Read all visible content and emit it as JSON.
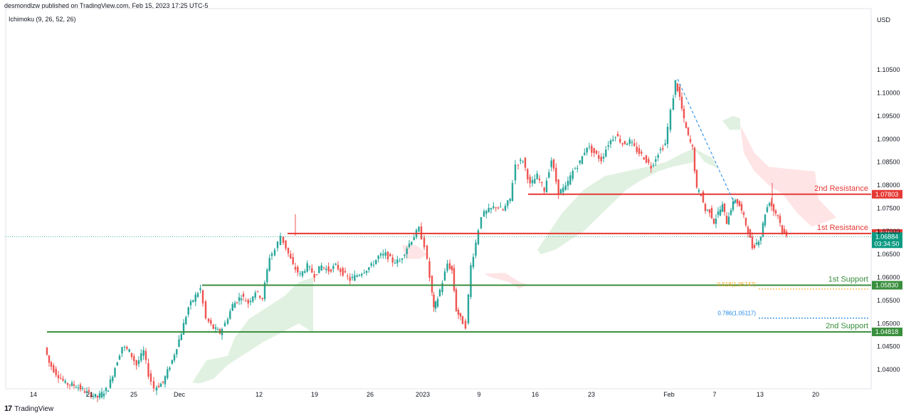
{
  "header": {
    "published": "desmondlzw published on TradingView.com, Feb 15, 2023 17:25 UTC-5"
  },
  "indicator": {
    "label": "Ichimoku (9, 26, 52, 26)"
  },
  "footer": {
    "brand": "TradingView",
    "logo": "17"
  },
  "colors": {
    "up": "#26a69a",
    "down": "#ef5350",
    "resistance": "#e53935",
    "support": "#388e3c",
    "cloud_bull": "#c8e6c9",
    "cloud_bear": "#ffcdd2",
    "fib_orange": "#f9a825",
    "fib_blue": "#1e88e5"
  },
  "chart_data": {
    "type": "candlestick",
    "title": "",
    "currency": "USD",
    "ylim": [
      1.037,
      1.112
    ],
    "y_ticks": [
      "1.10500",
      "1.10000",
      "1.09500",
      "1.09000",
      "1.08500",
      "1.08000",
      "1.07500",
      "1.07000",
      "1.06500",
      "1.06000",
      "1.05500",
      "1.05000",
      "1.04500",
      "1.04000"
    ],
    "x_ticks": [
      {
        "label": "14",
        "x": 47
      },
      {
        "label": "21",
        "x": 126
      },
      {
        "label": "25",
        "x": 188
      },
      {
        "label": "Dec",
        "x": 252
      },
      {
        "label": "12",
        "x": 364
      },
      {
        "label": "19",
        "x": 442
      },
      {
        "label": "26",
        "x": 520
      },
      {
        "label": "2023",
        "x": 594
      },
      {
        "label": "9",
        "x": 673
      },
      {
        "label": "16",
        "x": 752
      },
      {
        "label": "23",
        "x": 831
      },
      {
        "label": "Feb",
        "x": 940
      },
      {
        "label": "7",
        "x": 1004
      },
      {
        "label": "13",
        "x": 1068
      },
      {
        "label": "20",
        "x": 1146
      }
    ],
    "x_range": [
      0,
      1224
    ],
    "price_path": [
      [
        66,
        1.0448
      ],
      [
        72,
        1.0415
      ],
      [
        82,
        1.0392
      ],
      [
        95,
        1.037
      ],
      [
        110,
        1.0365
      ],
      [
        125,
        1.035
      ],
      [
        140,
        1.034
      ],
      [
        155,
        1.036
      ],
      [
        168,
        1.042
      ],
      [
        175,
        1.045
      ],
      [
        185,
        1.044
      ],
      [
        195,
        1.041
      ],
      [
        205,
        1.044
      ],
      [
        212,
        1.039
      ],
      [
        220,
        1.036
      ],
      [
        232,
        1.0372
      ],
      [
        245,
        1.042
      ],
      [
        258,
        1.048
      ],
      [
        268,
        1.0535
      ],
      [
        278,
        1.056
      ],
      [
        285,
        1.0575
      ],
      [
        293,
        1.051
      ],
      [
        303,
        1.049
      ],
      [
        312,
        1.048
      ],
      [
        320,
        1.05
      ],
      [
        330,
        1.054
      ],
      [
        342,
        1.056
      ],
      [
        352,
        1.0545
      ],
      [
        362,
        1.057
      ],
      [
        372,
        1.0555
      ],
      [
        382,
        1.0645
      ],
      [
        390,
        1.066
      ],
      [
        398,
        1.069
      ],
      [
        405,
        1.0665
      ],
      [
        415,
        1.0625
      ],
      [
        425,
        1.0605
      ],
      [
        435,
        1.0625
      ],
      [
        445,
        1.0605
      ],
      [
        455,
        1.0625
      ],
      [
        465,
        1.0615
      ],
      [
        475,
        1.0625
      ],
      [
        485,
        1.061
      ],
      [
        495,
        1.0595
      ],
      [
        505,
        1.0605
      ],
      [
        515,
        1.0615
      ],
      [
        525,
        1.0625
      ],
      [
        535,
        1.0645
      ],
      [
        545,
        1.065
      ],
      [
        555,
        1.0635
      ],
      [
        565,
        1.0635
      ],
      [
        575,
        1.0665
      ],
      [
        585,
        1.069
      ],
      [
        592,
        1.0705
      ],
      [
        600,
        1.067
      ],
      [
        607,
        1.06
      ],
      [
        612,
        1.053
      ],
      [
        618,
        1.0555
      ],
      [
        625,
        1.059
      ],
      [
        632,
        1.063
      ],
      [
        638,
        1.0615
      ],
      [
        644,
        1.053
      ],
      [
        650,
        1.051
      ],
      [
        658,
        1.0495
      ],
      [
        665,
        1.0625
      ],
      [
        672,
        1.0675
      ],
      [
        680,
        1.0735
      ],
      [
        690,
        1.0745
      ],
      [
        700,
        1.0755
      ],
      [
        710,
        1.0745
      ],
      [
        720,
        1.077
      ],
      [
        728,
        1.0845
      ],
      [
        738,
        1.0855
      ],
      [
        748,
        1.08
      ],
      [
        758,
        1.082
      ],
      [
        768,
        1.079
      ],
      [
        778,
        1.0855
      ],
      [
        788,
        1.0785
      ],
      [
        798,
        1.0795
      ],
      [
        808,
        1.083
      ],
      [
        818,
        1.085
      ],
      [
        828,
        1.0885
      ],
      [
        838,
        1.087
      ],
      [
        848,
        1.0855
      ],
      [
        858,
        1.089
      ],
      [
        868,
        1.091
      ],
      [
        878,
        1.089
      ],
      [
        888,
        1.0895
      ],
      [
        898,
        1.0875
      ],
      [
        908,
        1.086
      ],
      [
        918,
        1.084
      ],
      [
        928,
        1.087
      ],
      [
        938,
        1.089
      ],
      [
        946,
        1.096
      ],
      [
        952,
        1.1025
      ],
      [
        958,
        1.099
      ],
      [
        964,
        1.094
      ],
      [
        970,
        1.0905
      ],
      [
        976,
        1.088
      ],
      [
        982,
        1.079
      ],
      [
        988,
        1.078
      ],
      [
        994,
        1.0745
      ],
      [
        1000,
        1.0745
      ],
      [
        1006,
        1.072
      ],
      [
        1012,
        1.074
      ],
      [
        1018,
        1.0755
      ],
      [
        1024,
        1.072
      ],
      [
        1030,
        1.075
      ],
      [
        1036,
        1.077
      ],
      [
        1042,
        1.0755
      ],
      [
        1048,
        1.073
      ],
      [
        1054,
        1.07
      ],
      [
        1060,
        1.0665
      ],
      [
        1066,
        1.0675
      ],
      [
        1072,
        1.069
      ],
      [
        1078,
        1.074
      ],
      [
        1084,
        1.0765
      ],
      [
        1090,
        1.0745
      ],
      [
        1096,
        1.0735
      ],
      [
        1102,
        1.07
      ],
      [
        1108,
        1.0688
      ]
    ],
    "ichimoku_cloud": [
      {
        "kind": "bull",
        "points": [
          [
            270,
            1.0372
          ],
          [
            290,
            1.042
          ],
          [
            320,
            1.043
          ],
          [
            330,
            1.047
          ],
          [
            350,
            1.051
          ],
          [
            380,
            1.054
          ],
          [
            400,
            1.056
          ],
          [
            420,
            1.059
          ],
          [
            440,
            1.06
          ],
          [
            440,
            1.048
          ],
          [
            420,
            1.05
          ],
          [
            395,
            1.048
          ],
          [
            370,
            1.046
          ],
          [
            350,
            1.044
          ],
          [
            320,
            1.041
          ],
          [
            300,
            1.038
          ],
          [
            280,
            1.037
          ]
        ]
      },
      {
        "kind": "bear",
        "points": [
          [
            565,
            1.067
          ],
          [
            585,
            1.067
          ],
          [
            600,
            1.065
          ],
          [
            590,
            1.064
          ],
          [
            570,
            1.064
          ]
        ]
      },
      {
        "kind": "bear",
        "points": [
          [
            680,
            1.0608
          ],
          [
            710,
            1.061
          ],
          [
            730,
            1.059
          ],
          [
            740,
            1.0585
          ],
          [
            730,
            1.0575
          ],
          [
            715,
            1.059
          ],
          [
            690,
            1.06
          ]
        ]
      },
      {
        "kind": "bull",
        "points": [
          [
            755,
            1.066
          ],
          [
            790,
            1.074
          ],
          [
            820,
            1.079
          ],
          [
            850,
            1.082
          ],
          [
            880,
            1.083
          ],
          [
            910,
            1.084
          ],
          [
            935,
            1.085
          ],
          [
            960,
            1.087
          ],
          [
            975,
            1.088
          ],
          [
            975,
            1.085
          ],
          [
            945,
            1.084
          ],
          [
            925,
            1.083
          ],
          [
            900,
            1.081
          ],
          [
            880,
            1.079
          ],
          [
            860,
            1.076
          ],
          [
            840,
            1.073
          ],
          [
            820,
            1.07
          ],
          [
            800,
            1.068
          ],
          [
            780,
            1.066
          ],
          [
            760,
            1.065
          ]
        ]
      },
      {
        "kind": "bull",
        "points": [
          [
            1015,
            1.094
          ],
          [
            1030,
            1.095
          ],
          [
            1040,
            1.0945
          ],
          [
            1040,
            1.092
          ],
          [
            1025,
            1.092
          ]
        ]
      },
      {
        "kind": "bear",
        "points": [
          [
            1040,
            1.093
          ],
          [
            1060,
            1.087
          ],
          [
            1080,
            1.084
          ],
          [
            1110,
            1.0835
          ],
          [
            1145,
            1.083
          ],
          [
            1150,
            1.077
          ],
          [
            1175,
            1.073
          ],
          [
            1160,
            1.072
          ],
          [
            1140,
            1.071
          ],
          [
            1120,
            1.074
          ],
          [
            1100,
            1.078
          ],
          [
            1080,
            1.08
          ],
          [
            1060,
            1.083
          ],
          [
            1045,
            1.087
          ]
        ]
      },
      {
        "kind": "bull",
        "points": [
          [
            975,
            1.088
          ],
          [
            1000,
            1.086
          ],
          [
            1010,
            1.0835
          ],
          [
            990,
            1.085
          ]
        ]
      }
    ],
    "levels": [
      {
        "name": "2nd Resistance",
        "value": 1.07803,
        "label": "1.07803",
        "kind": "resistance",
        "x_start": 742
      },
      {
        "name": "1st Resistance",
        "value": 1.06952,
        "label": "1.06952",
        "kind": "resistance",
        "x_start": 404
      },
      {
        "name": "1st Support",
        "value": 1.0583,
        "label": "1.05830",
        "kind": "support",
        "x_start": 284
      },
      {
        "name": "2nd Support",
        "value": 1.04818,
        "label": "1.04818",
        "kind": "support",
        "x_start": 66
      }
    ],
    "fib_levels": [
      {
        "label": "0.618(1.05747)",
        "value": 1.05747,
        "color": "fib_orange",
        "x_start": 1066
      },
      {
        "label": "0.786(1.05117)",
        "value": 1.05117,
        "color": "fib_blue",
        "x_start": 1066
      }
    ],
    "fib_trend": {
      "from": [
        952,
        1.103
      ],
      "to": [
        1032,
        1.076
      ]
    },
    "current_price": {
      "value": 1.06884,
      "label": "1.06884",
      "countdown": "03:34:50"
    },
    "spike_wicks": [
      [
        415,
        1.0737,
        1.069
      ],
      [
        1085,
        1.0805,
        1.076
      ]
    ]
  }
}
